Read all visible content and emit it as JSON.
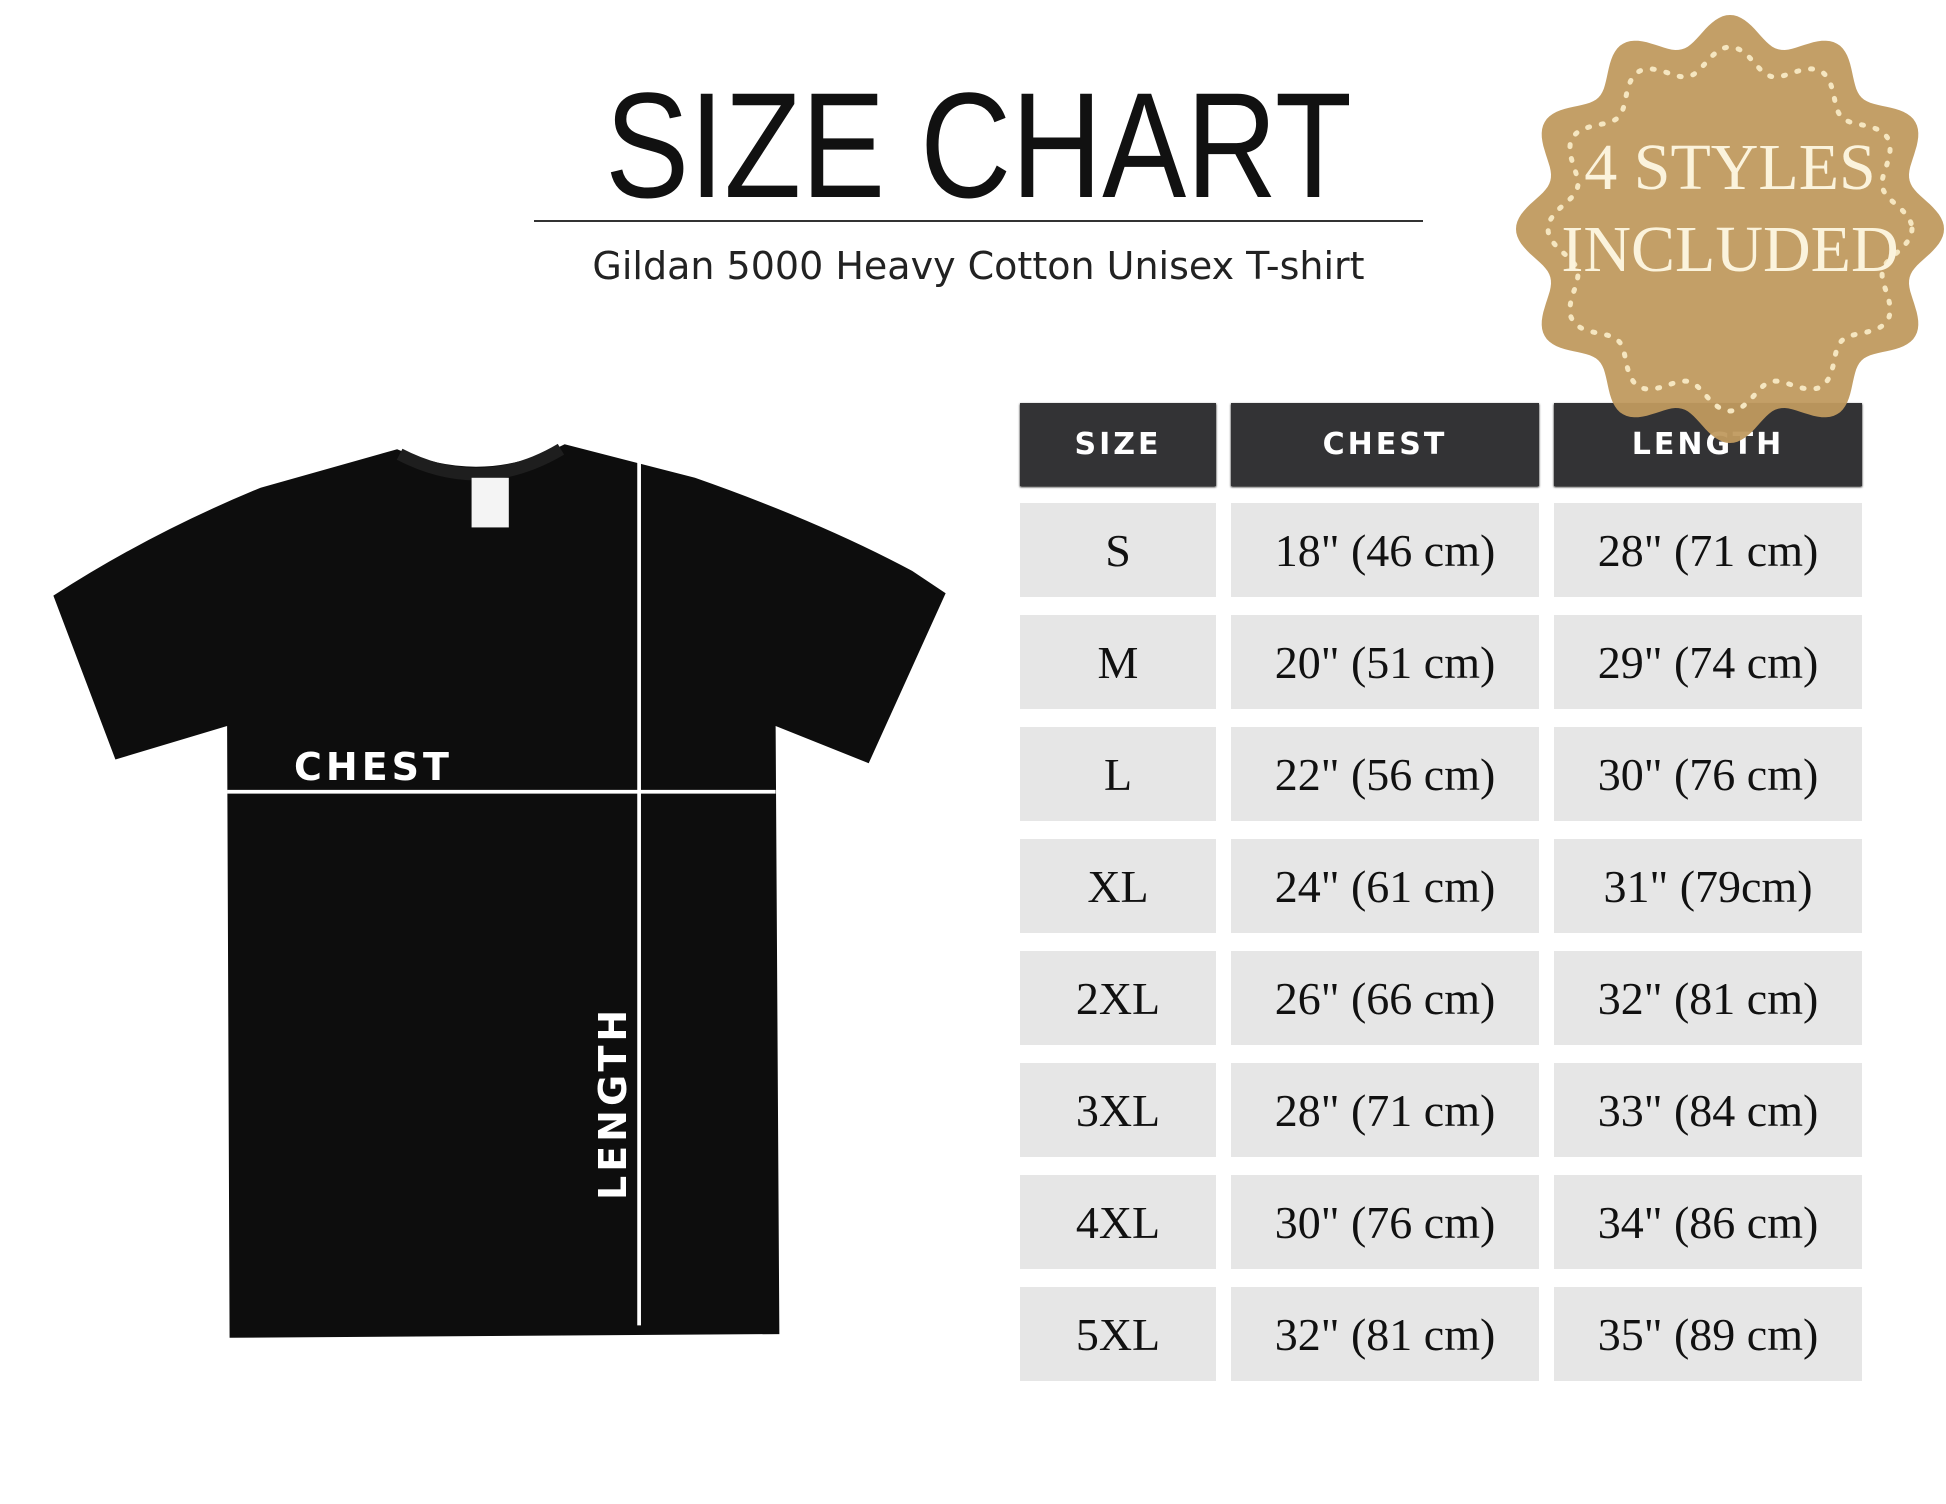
{
  "header": {
    "title": "SIZE CHART",
    "subtitle": "Gildan 5000 Heavy Cotton Unisex T-shirt"
  },
  "badge": {
    "line1": "4 STYLES",
    "line2": "INCLUDED",
    "color": "#c09a5f"
  },
  "diagram": {
    "chest_label": "CHEST",
    "length_label": "LENGTH"
  },
  "table": {
    "columns": [
      "SIZE",
      "CHEST",
      "LENGTH"
    ],
    "rows": [
      [
        "S",
        "18\" (46 cm)",
        "28\" (71 cm)"
      ],
      [
        "M",
        "20\" (51 cm)",
        "29\" (74 cm)"
      ],
      [
        "L",
        "22\" (56 cm)",
        "30\" (76 cm)"
      ],
      [
        "XL",
        "24\" (61 cm)",
        "31\" (79cm)"
      ],
      [
        "2XL",
        "26\" (66 cm)",
        "32\" (81 cm)"
      ],
      [
        "3XL",
        "28\" (71 cm)",
        "33\" (84 cm)"
      ],
      [
        "4XL",
        "30\" (76 cm)",
        "34\" (86 cm)"
      ],
      [
        "5XL",
        "32\" (81 cm)",
        "35\" (89 cm)"
      ]
    ]
  }
}
